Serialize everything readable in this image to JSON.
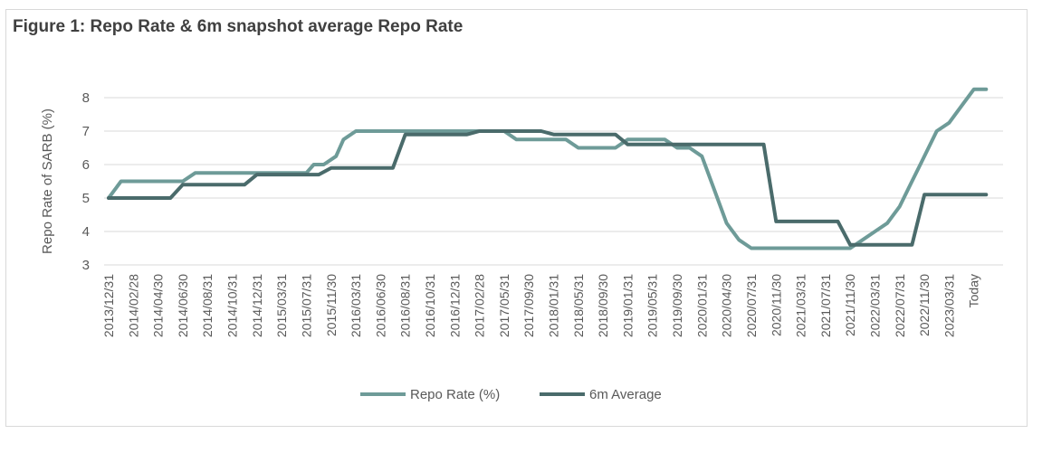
{
  "title": "Figure 1: Repo Rate & 6m snapshot average Repo Rate",
  "colors": {
    "repo": "#6e9b98",
    "avg": "#4a6b6b",
    "grid": "#d9d9d9"
  },
  "chart_data": {
    "type": "line",
    "title": "Figure 1: Repo Rate & 6m snapshot average Repo Rate",
    "xlabel": "",
    "ylabel": "Repo Rate of SARB (%)",
    "ylim": [
      3,
      8
    ],
    "yticks": [
      3,
      4,
      5,
      6,
      7,
      8
    ],
    "grid": true,
    "legend": "bottom",
    "categories": [
      "2013/12/31",
      "2014/02/28",
      "2014/04/30",
      "2014/06/30",
      "2014/08/31",
      "2014/10/31",
      "2014/12/31",
      "2015/03/31",
      "2015/07/31",
      "2015/11/30",
      "2016/03/31",
      "2016/06/30",
      "2016/08/31",
      "2016/10/31",
      "2016/12/31",
      "2017/02/28",
      "2017/05/31",
      "2017/09/30",
      "2018/01/31",
      "2018/05/31",
      "2018/09/30",
      "2019/01/31",
      "2019/05/31",
      "2019/09/30",
      "2020/01/31",
      "2020/04/30",
      "2020/07/31",
      "2020/11/30",
      "2021/03/31",
      "2021/07/31",
      "2021/11/30",
      "2022/03/31",
      "2022/07/31",
      "2022/11/30",
      "2023/03/31",
      "Today"
    ],
    "x": [
      0,
      1,
      2,
      3,
      4,
      5,
      6,
      7,
      8,
      9,
      10,
      11,
      12,
      13,
      14,
      15,
      16,
      17,
      18,
      19,
      20,
      21,
      22,
      23,
      24,
      25,
      26,
      27,
      28,
      29,
      30,
      31,
      32,
      33,
      34,
      35
    ],
    "series": [
      {
        "name": "Repo Rate (%)",
        "points": [
          [
            0,
            5.0
          ],
          [
            0.5,
            5.5
          ],
          [
            3,
            5.5
          ],
          [
            3.5,
            5.75
          ],
          [
            6,
            5.75
          ],
          [
            6.5,
            5.75
          ],
          [
            8,
            5.75
          ],
          [
            8.3,
            6.0
          ],
          [
            8.7,
            6.0
          ],
          [
            9.2,
            6.25
          ],
          [
            9.5,
            6.75
          ],
          [
            10,
            7.0
          ],
          [
            15.5,
            7.0
          ],
          [
            16,
            7.0
          ],
          [
            16.5,
            6.75
          ],
          [
            18.5,
            6.75
          ],
          [
            19,
            6.5
          ],
          [
            20.5,
            6.5
          ],
          [
            21,
            6.75
          ],
          [
            22.5,
            6.75
          ],
          [
            23,
            6.5
          ],
          [
            23.5,
            6.5
          ],
          [
            24,
            6.25
          ],
          [
            24.5,
            5.25
          ],
          [
            25,
            4.25
          ],
          [
            25.5,
            3.75
          ],
          [
            26,
            3.5
          ],
          [
            30,
            3.5
          ],
          [
            30.5,
            3.75
          ],
          [
            31,
            4.0
          ],
          [
            31.5,
            4.25
          ],
          [
            32,
            4.75
          ],
          [
            32.5,
            5.5
          ],
          [
            33,
            6.25
          ],
          [
            33.5,
            7.0
          ],
          [
            34,
            7.25
          ],
          [
            34.5,
            7.75
          ],
          [
            35,
            8.25
          ],
          [
            35.5,
            8.25
          ]
        ]
      },
      {
        "name": "6m Average",
        "points": [
          [
            0,
            5.0
          ],
          [
            2.5,
            5.0
          ],
          [
            3,
            5.4
          ],
          [
            5.5,
            5.4
          ],
          [
            6,
            5.7
          ],
          [
            8.5,
            5.7
          ],
          [
            9,
            5.9
          ],
          [
            11.5,
            5.9
          ],
          [
            12,
            6.9
          ],
          [
            14.5,
            6.9
          ],
          [
            15,
            7.0
          ],
          [
            17.5,
            7.0
          ],
          [
            18,
            6.9
          ],
          [
            20.5,
            6.9
          ],
          [
            21,
            6.6
          ],
          [
            26.5,
            6.6
          ],
          [
            27,
            4.3
          ],
          [
            29.5,
            4.3
          ],
          [
            30,
            3.6
          ],
          [
            32.5,
            3.6
          ],
          [
            33,
            5.1
          ],
          [
            35.5,
            5.1
          ]
        ]
      }
    ]
  }
}
